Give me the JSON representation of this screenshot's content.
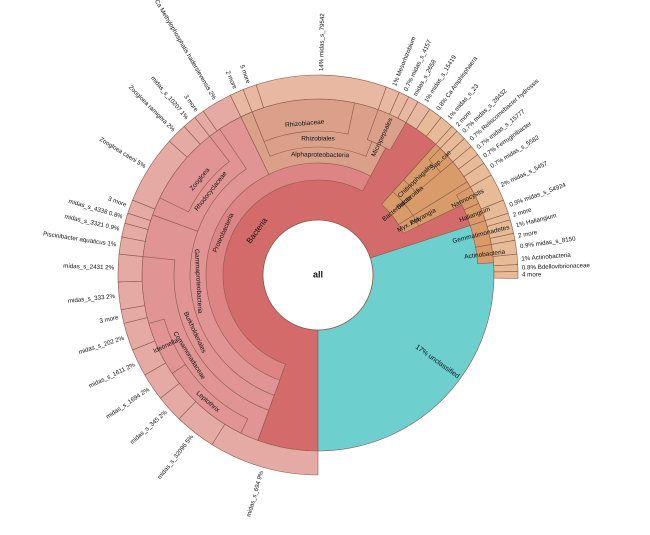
{
  "chart_data": {
    "type": "sunburst",
    "center_label": "all",
    "colors": {
      "bacteria": "#d46b6b",
      "proteobacteria": "#dd8585",
      "gamma": "#e09494",
      "gamma_leaf": "#e6aaa5",
      "alpha": "#dba08a",
      "alpha_leaf": "#e8b8a3",
      "other": "#d99b6a",
      "other_leaf": "#e7bb97",
      "unclassified": "#6ecfcf",
      "stroke": "#8a5a4a"
    },
    "rings": [
      {
        "name": "Bacteria",
        "band": 0,
        "start": 180,
        "end": 432,
        "color": "bacteria",
        "label": true
      },
      {
        "name": "unclassified",
        "band": 0,
        "start": 72,
        "end": 180,
        "color": "unclassified",
        "label": false
      },
      {
        "name": "Proteobacteria",
        "band": 1,
        "start": 200,
        "end": 388,
        "color": "proteobacteria",
        "label": true
      },
      {
        "name": "Bacteroidota",
        "band": 1,
        "start": 402,
        "end": 418,
        "color": "other",
        "label": true
      },
      {
        "name": "Myx..ota",
        "band": 1,
        "start": 418,
        "end": 424,
        "color": "other",
        "label": true
      },
      {
        "name": "Gammaproteobacteria",
        "band": 2,
        "start": 200,
        "end": 334,
        "color": "gamma",
        "label": true
      },
      {
        "name": "Alphaproteobacteria",
        "band": 2,
        "start": 334,
        "end": 388,
        "color": "alpha",
        "label": true
      },
      {
        "name": "Bacteroidia",
        "band": 2,
        "start": 402,
        "end": 418,
        "color": "other",
        "label": true
      },
      {
        "name": "Polyangia",
        "band": 2,
        "start": 418,
        "end": 424,
        "color": "other",
        "label": true
      },
      {
        "name": "Burkholderiales",
        "band": 3,
        "start": 200,
        "end": 290,
        "color": "gamma",
        "label": true
      },
      {
        "name": "Rhodocyclaceae",
        "band": 3,
        "start": 290,
        "end": 326,
        "color": "gamma",
        "label": true
      },
      {
        "name": "Rhizobiales",
        "band": 3,
        "start": 338,
        "end": 382,
        "color": "alpha",
        "label": true
      },
      {
        "name": "Chitinophagales",
        "band": 3,
        "start": 402,
        "end": 410,
        "color": "other",
        "label": true
      },
      {
        "name": "Comamonadaceae",
        "band": 4,
        "start": 200,
        "end": 276,
        "color": "gamma",
        "label": true
      },
      {
        "name": "Zoogloea",
        "band": 4,
        "start": 296,
        "end": 322,
        "color": "gamma",
        "label": true
      },
      {
        "name": "Rhizobiaceae",
        "band": 4,
        "start": 338,
        "end": 372,
        "color": "alpha",
        "label": true
      },
      {
        "name": "Micropepsales",
        "band": 4,
        "start": 380,
        "end": 390,
        "color": "alpha",
        "label": true
      },
      {
        "name": "Leptothrix",
        "band": 5,
        "start": 206,
        "end": 236,
        "color": "gamma",
        "label": true
      },
      {
        "name": "Ideonella",
        "band": 5,
        "start": 236,
        "end": 254,
        "color": "gamma",
        "label": true
      },
      {
        "name": "Sap..cae",
        "band": 5,
        "start": 404,
        "end": 410,
        "color": "other",
        "label": true
      },
      {
        "name": "Nannocystis",
        "band": 5,
        "start": 420,
        "end": 426,
        "color": "other",
        "label": true
      },
      {
        "name": "Haliangium",
        "band": 5,
        "start": 426,
        "end": 432,
        "color": "other",
        "label": true
      },
      {
        "name": "Gemmatimonadetes",
        "band": 5,
        "start": 432,
        "end": 440,
        "color": "other",
        "label": true
      },
      {
        "name": "Actinobacteria",
        "band": 5,
        "start": 440,
        "end": 446,
        "color": "other",
        "label": true
      }
    ],
    "leaves": [
      {
        "label": "17% unclassified",
        "start": 72,
        "end": 180,
        "color": "unclassified",
        "inside": true
      },
      {
        "label": "midas_s_694   9%",
        "start": 180,
        "end": 212,
        "color": "gamma_leaf"
      },
      {
        "label": "midas_s_32096   5%",
        "start": 212,
        "end": 224,
        "color": "gamma_leaf"
      },
      {
        "label": "midas_s_345   2%",
        "start": 224,
        "end": 232,
        "color": "gamma_leaf"
      },
      {
        "label": "midas_s_1694   2%",
        "start": 232,
        "end": 240,
        "color": "gamma_leaf"
      },
      {
        "label": "midas_s_1611   2%",
        "start": 240,
        "end": 248,
        "color": "gamma_leaf"
      },
      {
        "label": "midas_s_202   2%",
        "start": 248,
        "end": 256,
        "color": "gamma_leaf"
      },
      {
        "label": "3 more",
        "start": 256,
        "end": 260,
        "color": "gamma_leaf"
      },
      {
        "label": "midas_s_333   2%",
        "start": 260,
        "end": 268,
        "color": "gamma_leaf"
      },
      {
        "label": "midas_s_2431   2%",
        "start": 268,
        "end": 276,
        "color": "gamma_leaf"
      },
      {
        "label": "Piscinibacter aquaticus   1%",
        "start": 276,
        "end": 281,
        "color": "gamma_leaf"
      },
      {
        "label": "midas_s_3321   0.9%",
        "start": 281,
        "end": 285,
        "color": "gamma_leaf"
      },
      {
        "label": "midas_s_4338   0.8%",
        "start": 285,
        "end": 288,
        "color": "gamma_leaf"
      },
      {
        "label": "3 more",
        "start": 288,
        "end": 292,
        "color": "gamma_leaf"
      },
      {
        "label": "Zoogloea caeni   5%",
        "start": 292,
        "end": 312,
        "color": "gamma_leaf"
      },
      {
        "label": "Zoogloea ramigera   2%",
        "start": 312,
        "end": 318,
        "color": "gamma_leaf"
      },
      {
        "label": "midas_s_10207   1%",
        "start": 318,
        "end": 322,
        "color": "gamma_leaf"
      },
      {
        "label": "3 more",
        "start": 322,
        "end": 325,
        "color": "gamma_leaf"
      },
      {
        "label": "Ca Methylophosphatis haderslevensis   2%",
        "start": 325,
        "end": 334,
        "color": "gamma_leaf"
      },
      {
        "label": "2 more",
        "start": 334,
        "end": 338,
        "color": "alpha_leaf"
      },
      {
        "label": "5 more",
        "start": 338,
        "end": 342,
        "color": "alpha_leaf"
      },
      {
        "label": "14%   midas_s_79542",
        "start": 342,
        "end": 380,
        "color": "alpha_leaf"
      },
      {
        "label": "1%   Mesorhizobium",
        "start": 380,
        "end": 384,
        "color": "alpha_leaf"
      },
      {
        "label": "0.7%   midas_s_4157",
        "start": 384,
        "end": 387,
        "color": "alpha_leaf"
      },
      {
        "label": "midas_s_2658",
        "start": 387,
        "end": 390,
        "color": "alpha_leaf"
      },
      {
        "label": "1%   midas_s_15419",
        "start": 390,
        "end": 394,
        "color": "alpha_leaf"
      },
      {
        "label": "0.8%   Ca Amphisphaera",
        "start": 394,
        "end": 398,
        "color": "other_leaf"
      },
      {
        "label": "1%   midas_s_23",
        "start": 398,
        "end": 402,
        "color": "other_leaf"
      },
      {
        "label": "2 more",
        "start": 402,
        "end": 404,
        "color": "other_leaf"
      },
      {
        "label": "0.7%   midas_s_28432",
        "start": 404,
        "end": 407,
        "color": "other_leaf"
      },
      {
        "label": "0.7%   Reliscomebacter hydrossis",
        "start": 407,
        "end": 410,
        "color": "other_leaf"
      },
      {
        "label": "0.7%   midas_s_15777",
        "start": 410,
        "end": 413,
        "color": "other_leaf"
      },
      {
        "label": "0.7%   Ferruginibacter",
        "start": 413,
        "end": 416,
        "color": "other_leaf"
      },
      {
        "label": "0.7%   midas_s_5582",
        "start": 416,
        "end": 420,
        "color": "other_leaf"
      },
      {
        "label": "2%   midas_s_5457",
        "start": 420,
        "end": 428,
        "color": "other_leaf"
      },
      {
        "label": "0.9%   midas_s_54924",
        "start": 428,
        "end": 432,
        "color": "other_leaf"
      },
      {
        "label": "2 more",
        "start": 432,
        "end": 434,
        "color": "other_leaf"
      },
      {
        "label": "1%   Haliangium",
        "start": 434,
        "end": 438,
        "color": "other_leaf"
      },
      {
        "label": "2 more",
        "start": 438,
        "end": 440,
        "color": "other_leaf"
      },
      {
        "label": "0.9%   midas_s_8150",
        "start": 440,
        "end": 444,
        "color": "other_leaf"
      },
      {
        "label": "1%   Actinobacteria",
        "start": 444,
        "end": 447,
        "color": "other_leaf"
      },
      {
        "label": "0.8%   Bdellovibrionaceae",
        "start": 447,
        "end": 449,
        "color": "other_leaf"
      },
      {
        "label": "4 more",
        "start": 449,
        "end": 451,
        "color": "other_leaf"
      }
    ]
  }
}
